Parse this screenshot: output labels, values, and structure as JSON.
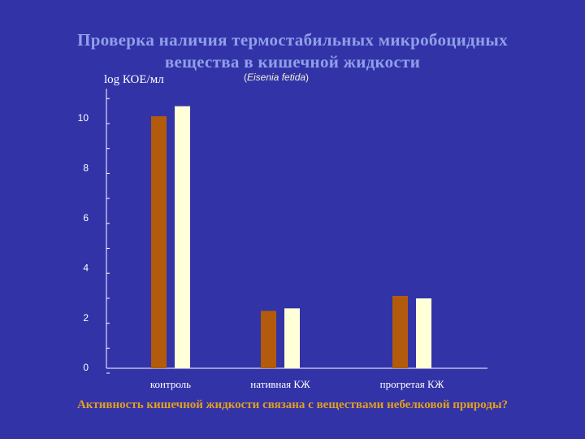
{
  "slide": {
    "title_line1": "Проверка наличия термостабильных микробоцидных",
    "title_line2": "вещества в кишечной жидкости",
    "subtitle_open": "(",
    "subtitle_species": "Eisenia fetida",
    "subtitle_close": ")",
    "footer": "Активность кишечной жидкости связана с веществами небелковой природы?"
  },
  "colors": {
    "background": "#3333a8",
    "series1": "#b25b0c",
    "series2": "#ffffd8",
    "axis": "#ffffff",
    "title": "#8fa0e8",
    "footer": "#e0a020"
  },
  "chart_data": {
    "type": "bar",
    "ylabel": "log КОЕ/мл",
    "categories": [
      "контроль",
      "нативная КЖ",
      "прогретая КЖ"
    ],
    "series": [
      {
        "values": [
          10.1,
          2.3,
          2.9
        ]
      },
      {
        "values": [
          10.5,
          2.4,
          2.8
        ]
      }
    ],
    "ylim": [
      0,
      11.2
    ],
    "yticks": [
      0,
      2,
      4,
      6,
      8,
      10
    ],
    "grid": false
  }
}
